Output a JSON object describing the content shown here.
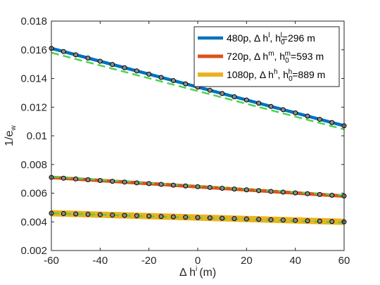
{
  "chart_data": {
    "type": "line",
    "xlabel": "Δ h",
    "xlabel_sup": "i",
    "xlabel_unit": "(m)",
    "ylabel": "1/e",
    "ylabel_sub": "w",
    "xlim": [
      -60,
      60
    ],
    "ylim": [
      0.002,
      0.018
    ],
    "x_ticks": [
      "-60",
      "-40",
      "-20",
      "0",
      "20",
      "40",
      "60"
    ],
    "y_ticks": [
      "0.002",
      "0.004",
      "0.006",
      "0.008",
      "0.01",
      "0.012",
      "0.014",
      "0.016",
      "0.018"
    ],
    "grid": false,
    "legend_position": "top-right",
    "marker_x": [
      -60,
      -55,
      -50,
      -45,
      -40,
      -35,
      -30,
      -25,
      -20,
      -15,
      -10,
      -5,
      0,
      5,
      10,
      15,
      20,
      25,
      30,
      35,
      40,
      45,
      50,
      55,
      60
    ],
    "series": [
      {
        "legend": {
          "a": "480p, Δ h",
          "sup": "l",
          "b": ", h",
          "sub": "0",
          "sup2": "l",
          "c": "=296 m"
        },
        "color": "#0072BD",
        "line_width": 4.5,
        "y_start": 0.0161,
        "y_end": 0.0107,
        "fit_start": 0.0158,
        "fit_end": 0.01045
      },
      {
        "legend": {
          "a": "720p, Δ h",
          "sup": "m",
          "b": ", h",
          "sub": "0",
          "sup2": "m",
          "c": "=593 m"
        },
        "color": "#D95319",
        "line_width": 5,
        "y_start": 0.0071,
        "y_end": 0.0058,
        "fit_start": 0.00715,
        "fit_end": 0.00585
      },
      {
        "legend": {
          "a": "1080p, Δ h",
          "sup": "h",
          "b": ", h",
          "sub": "0",
          "sup2": "h",
          "c": "=889 m"
        },
        "color": "#EDB120",
        "line_width": 9,
        "y_start": 0.0046,
        "y_end": 0.004,
        "fit_start": 0.0046,
        "fit_end": 0.00395
      }
    ],
    "fit_color": "#4DD24D",
    "marker_face": "#8C8C8C",
    "marker_edge": "#000000"
  }
}
